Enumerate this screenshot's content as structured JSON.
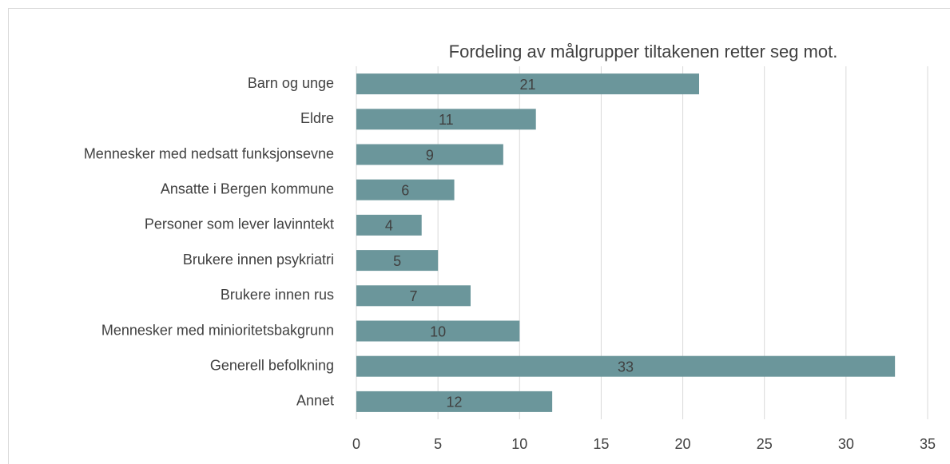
{
  "chart_data": {
    "type": "bar",
    "orientation": "horizontal",
    "title": "Fordeling av målgrupper tiltakenen retter seg mot.",
    "categories": [
      "Barn og unge",
      "Eldre",
      "Mennesker med nedsatt funksjonsevne",
      "Ansatte i Bergen kommune",
      "Personer som lever lavinntekt",
      "Brukere innen psykriatri",
      "Brukere innen rus",
      "Mennesker med minioritetsbakgrunn",
      "Generell befolkning",
      "Annet"
    ],
    "values": [
      21,
      11,
      9,
      6,
      4,
      5,
      7,
      10,
      33,
      12
    ],
    "color": "#6b969b",
    "xlim": [
      0,
      35
    ],
    "xticks": [
      0,
      5,
      10,
      15,
      20,
      25,
      30,
      35
    ],
    "grid": true
  }
}
